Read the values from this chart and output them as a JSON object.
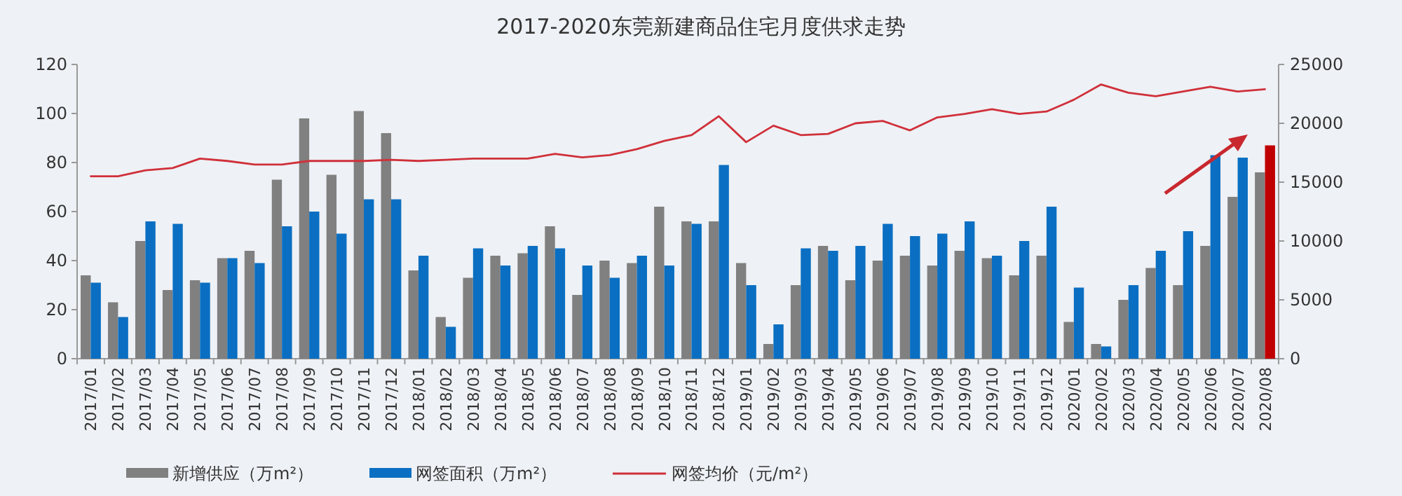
{
  "chart_data": {
    "type": "bar",
    "title": "2017-2020东莞新建商品住宅月度供求走势",
    "categories": [
      "2017/01",
      "2017/02",
      "2017/03",
      "2017/04",
      "2017/05",
      "2017/06",
      "2017/07",
      "2017/08",
      "2017/09",
      "2017/10",
      "2017/11",
      "2017/12",
      "2018/01",
      "2018/02",
      "2018/03",
      "2018/04",
      "2018/05",
      "2018/06",
      "2018/07",
      "2018/08",
      "2018/09",
      "2018/10",
      "2018/11",
      "2018/12",
      "2019/01",
      "2019/02",
      "2019/03",
      "2019/04",
      "2019/05",
      "2019/06",
      "2019/07",
      "2019/08",
      "2019/09",
      "2019/10",
      "2019/11",
      "2019/12",
      "2020/01",
      "2020/02",
      "2020/03",
      "2020/04",
      "2020/05",
      "2020/06",
      "2020/07",
      "2020/08"
    ],
    "series": [
      {
        "name": "新增供应（万m²）",
        "color": "#808080",
        "values": [
          34,
          23,
          48,
          28,
          32,
          41,
          44,
          73,
          98,
          75,
          101,
          92,
          36,
          17,
          33,
          42,
          43,
          54,
          26,
          40,
          39,
          62,
          56,
          56,
          39,
          6,
          30,
          46,
          32,
          40,
          42,
          38,
          44,
          41,
          34,
          42,
          15,
          6,
          24,
          37,
          30,
          46,
          66,
          76
        ]
      },
      {
        "name": "网签面积（万m²）",
        "color": "#0a6fc2",
        "colors": [
          "#0a6fc2",
          "#0a6fc2",
          "#0a6fc2",
          "#0a6fc2",
          "#0a6fc2",
          "#0a6fc2",
          "#0a6fc2",
          "#0a6fc2",
          "#0a6fc2",
          "#0a6fc2",
          "#0a6fc2",
          "#0a6fc2",
          "#0a6fc2",
          "#0a6fc2",
          "#0a6fc2",
          "#0a6fc2",
          "#0a6fc2",
          "#0a6fc2",
          "#0a6fc2",
          "#0a6fc2",
          "#0a6fc2",
          "#0a6fc2",
          "#0a6fc2",
          "#0a6fc2",
          "#0a6fc2",
          "#0a6fc2",
          "#0a6fc2",
          "#0a6fc2",
          "#0a6fc2",
          "#0a6fc2",
          "#0a6fc2",
          "#0a6fc2",
          "#0a6fc2",
          "#0a6fc2",
          "#0a6fc2",
          "#0a6fc2",
          "#0a6fc2",
          "#0a6fc2",
          "#0a6fc2",
          "#0a6fc2",
          "#0a6fc2",
          "#0a6fc2",
          "#0a6fc2",
          "#c00000"
        ],
        "values": [
          31,
          17,
          56,
          55,
          31,
          41,
          39,
          54,
          60,
          51,
          65,
          65,
          42,
          13,
          45,
          38,
          46,
          45,
          38,
          33,
          42,
          38,
          55,
          79,
          30,
          14,
          45,
          44,
          46,
          55,
          50,
          51,
          56,
          42,
          48,
          62,
          29,
          5,
          30,
          44,
          52,
          83,
          82,
          87
        ]
      },
      {
        "name": "网签均价（元/m²）",
        "type": "line",
        "axis": "y2",
        "color": "#d0303a",
        "values": [
          15500,
          15500,
          16000,
          16200,
          17000,
          16800,
          16500,
          16500,
          16800,
          16800,
          16800,
          16900,
          16800,
          16900,
          17000,
          17000,
          17000,
          17400,
          17100,
          17300,
          17800,
          18500,
          19000,
          20600,
          18400,
          19800,
          19000,
          19100,
          20000,
          20200,
          19400,
          20500,
          20800,
          21200,
          20800,
          21000,
          22000,
          23300,
          22600,
          22300,
          22700,
          23100,
          22700,
          22900
        ]
      }
    ],
    "ylim": [
      0,
      120
    ],
    "yticks": [
      0,
      20,
      40,
      60,
      80,
      100,
      120
    ],
    "y2lim": [
      0,
      25000
    ],
    "y2ticks": [
      0,
      5000,
      10000,
      15000,
      20000,
      25000
    ],
    "legend": "bottom",
    "marker": "none"
  }
}
